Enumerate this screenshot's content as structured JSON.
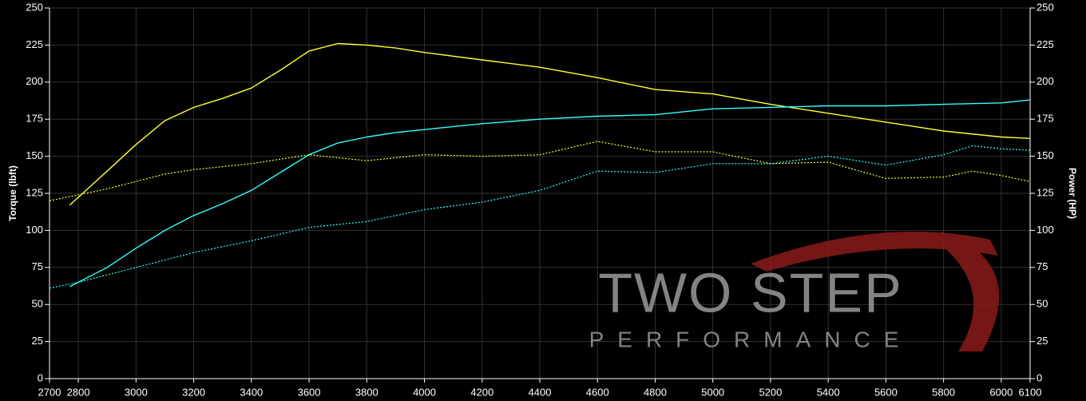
{
  "chart_data": {
    "type": "line",
    "y_label": "Torque (lbft)",
    "y2_label": "Power (HP)",
    "xlim": [
      2700,
      6100
    ],
    "xticks": [
      2700,
      2800,
      3000,
      3200,
      3400,
      3600,
      3800,
      4000,
      4200,
      4400,
      4600,
      4800,
      5000,
      5200,
      5400,
      5600,
      5800,
      6000,
      6100
    ],
    "ylim": [
      0,
      250
    ],
    "yticks": [
      0,
      25,
      50,
      75,
      100,
      125,
      150,
      175,
      200,
      225,
      250
    ],
    "y2lim": [
      0,
      250
    ],
    "y2ticks": [
      0,
      25,
      50,
      75,
      100,
      125,
      150,
      175,
      200,
      225,
      250
    ],
    "grid": true,
    "series": [
      {
        "color": "#ffff33",
        "style": "solid",
        "axis": "y",
        "x": [
          2770,
          2900,
          3000,
          3100,
          3200,
          3300,
          3400,
          3500,
          3600,
          3700,
          3800,
          3900,
          4000,
          4200,
          4400,
          4600,
          4800,
          5000,
          5200,
          5400,
          5600,
          5800,
          6000,
          6100
        ],
        "values": [
          117,
          140,
          158,
          174,
          183,
          189,
          196,
          208,
          221,
          226,
          225,
          223,
          220,
          215,
          210,
          203,
          195,
          192,
          185,
          179,
          173,
          167,
          163,
          162
        ]
      },
      {
        "color": "#33ffff",
        "style": "solid",
        "axis": "y2",
        "x": [
          2770,
          2900,
          3000,
          3100,
          3200,
          3300,
          3400,
          3500,
          3600,
          3700,
          3800,
          3900,
          4000,
          4200,
          4400,
          4600,
          4800,
          5000,
          5200,
          5400,
          5600,
          5800,
          6000,
          6100
        ],
        "values": [
          62,
          75,
          88,
          100,
          110,
          118,
          127,
          139,
          151,
          159,
          163,
          166,
          168,
          172,
          175,
          177,
          178,
          182,
          183,
          184,
          184,
          185,
          186,
          188
        ]
      },
      {
        "color": "#ffff33",
        "style": "dotted",
        "axis": "y",
        "x": [
          2700,
          2800,
          2900,
          3000,
          3100,
          3200,
          3400,
          3600,
          3800,
          4000,
          4200,
          4400,
          4600,
          4800,
          5000,
          5200,
          5400,
          5600,
          5800,
          5900,
          6000,
          6100
        ],
        "values": [
          120,
          124,
          128,
          133,
          138,
          141,
          145,
          151,
          147,
          151,
          150,
          151,
          160,
          153,
          153,
          145,
          146,
          135,
          136,
          140,
          137,
          133
        ]
      },
      {
        "color": "#33ffff",
        "style": "dotted",
        "axis": "y2",
        "x": [
          2700,
          2800,
          3000,
          3200,
          3400,
          3600,
          3800,
          4000,
          4200,
          4400,
          4600,
          4800,
          5000,
          5200,
          5400,
          5600,
          5800,
          5900,
          6000,
          6100
        ],
        "values": [
          61,
          65,
          75,
          85,
          93,
          102,
          106,
          114,
          119,
          127,
          140,
          139,
          145,
          145,
          150,
          144,
          151,
          157,
          155,
          154
        ]
      }
    ]
  },
  "watermark": {
    "title": "TWO STEP",
    "subtitle": "PERFORMANCE"
  }
}
